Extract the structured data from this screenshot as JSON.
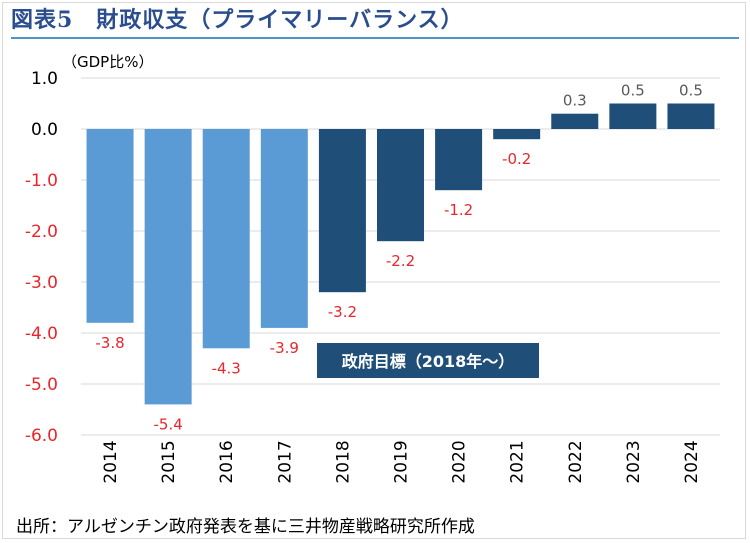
{
  "title": "図表5　財政収支（プライマリーバランス）",
  "source": "出所：アルゼンチン政府発表を基に三井物産戦略研究所作成",
  "colors": {
    "title": "#2a4d8f",
    "title_rule": "#4f93c8",
    "bar_light": "#5b9bd5",
    "bar_dark": "#1f4e79",
    "negative_label": "#e8262b",
    "positive_label": "#595959",
    "grid": "#d9d9d9"
  },
  "chart_data": {
    "type": "bar",
    "ylabel": "（GDP比%）",
    "ylim": [
      -6.0,
      1.0
    ],
    "yticks": [
      "1.0",
      "0.0",
      "-1.0",
      "-2.0",
      "-3.0",
      "-4.0",
      "-5.0",
      "-6.0"
    ],
    "grid": true,
    "categories": [
      "2014",
      "2015",
      "2016",
      "2017",
      "2018",
      "2019",
      "2020",
      "2021",
      "2022",
      "2023",
      "2024"
    ],
    "values": [
      -3.8,
      -5.4,
      -4.3,
      -3.9,
      -3.2,
      -2.2,
      -1.2,
      -0.2,
      0.3,
      0.5,
      0.5
    ],
    "value_labels": [
      "-3.8",
      "-5.4",
      "-4.3",
      "-3.9",
      "-3.2",
      "-2.2",
      "-1.2",
      "-0.2",
      "0.3",
      "0.5",
      "0.5"
    ],
    "annotation": "政府目標（2018年～）"
  }
}
